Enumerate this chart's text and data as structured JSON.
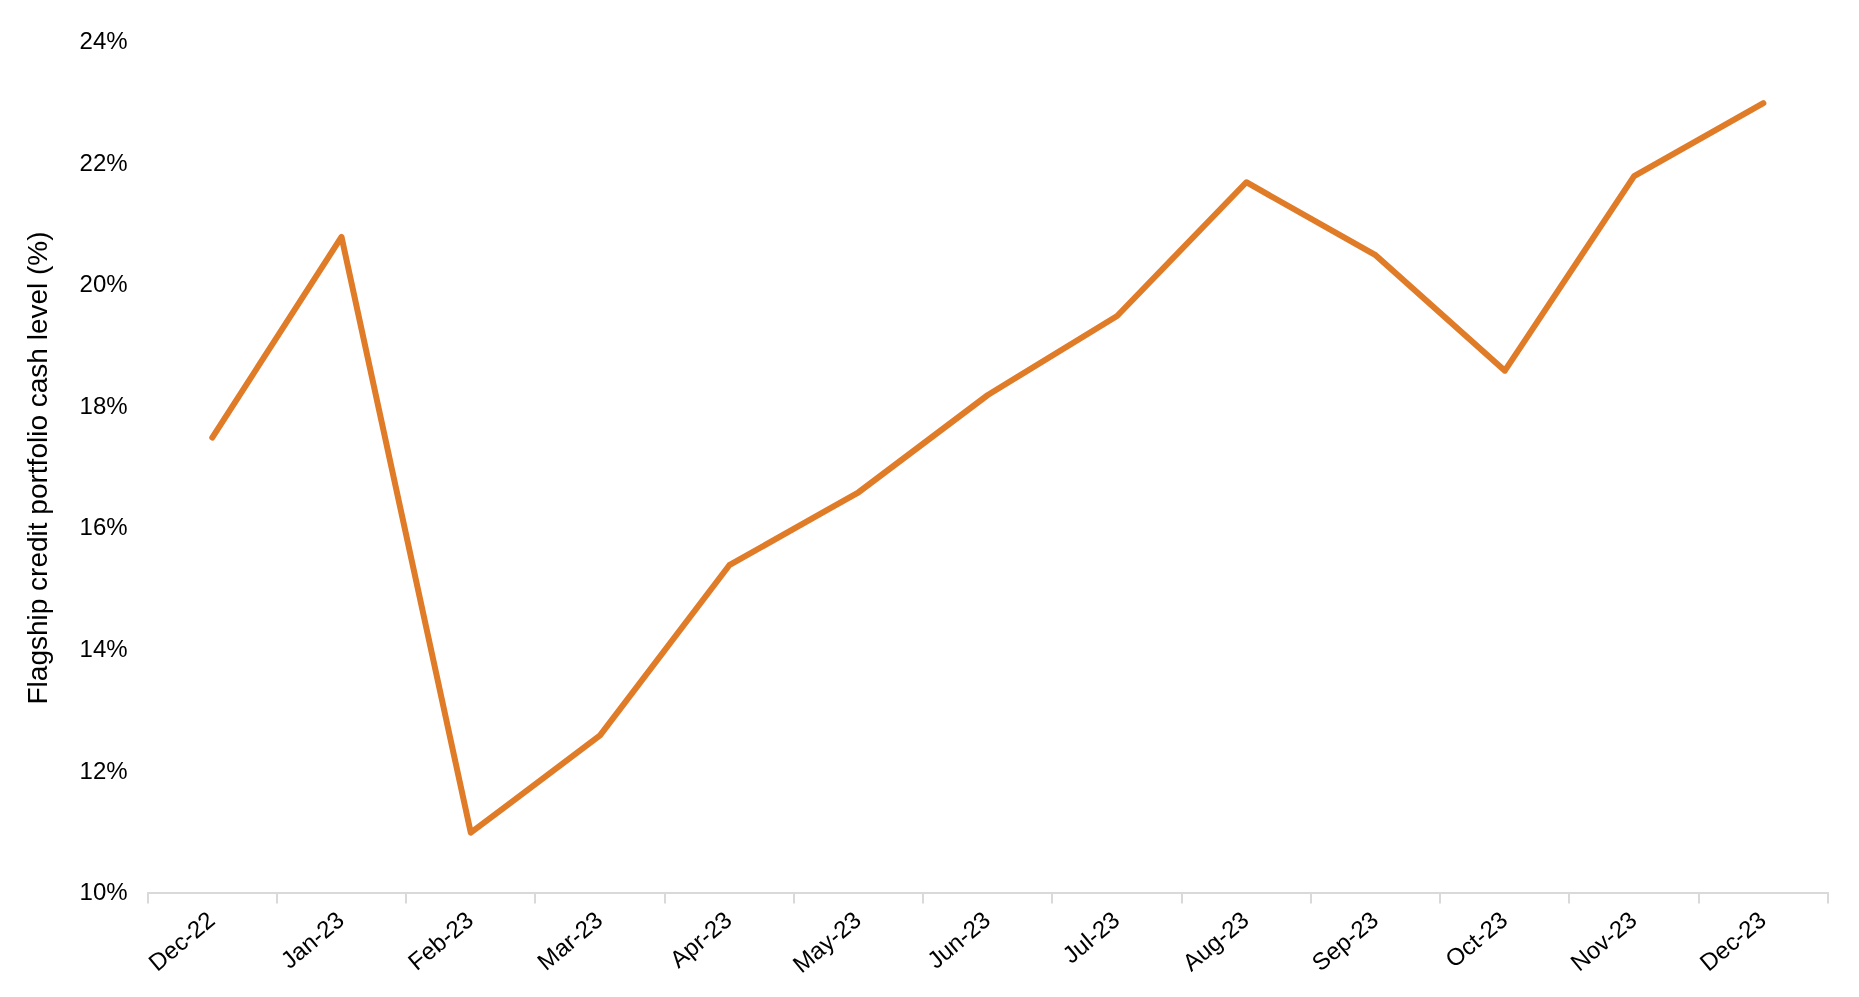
{
  "chart_data": {
    "type": "line",
    "ylabel": "Flagship credit portfolio cash level (%)",
    "categories": [
      "Dec-22",
      "Jan-23",
      "Feb-23",
      "Mar-23",
      "Apr-23",
      "May-23",
      "Jun-23",
      "Jul-23",
      "Aug-23",
      "Sep-23",
      "Oct-23",
      "Nov-23",
      "Dec-23"
    ],
    "series": [
      {
        "color": "#e07b28",
        "values": [
          17.5,
          20.8,
          11.0,
          12.6,
          15.4,
          16.6,
          18.2,
          19.5,
          21.7,
          20.5,
          18.6,
          21.8,
          23.0
        ]
      }
    ],
    "ylim": [
      10,
      24
    ],
    "yticks": [
      {
        "value": 10,
        "label": "10%"
      },
      {
        "value": 12,
        "label": "12%"
      },
      {
        "value": 14,
        "label": "14%"
      },
      {
        "value": 16,
        "label": "16%"
      },
      {
        "value": 18,
        "label": "18%"
      },
      {
        "value": 20,
        "label": "20%"
      },
      {
        "value": 22,
        "label": "22%"
      },
      {
        "value": 24,
        "label": "24%"
      }
    ],
    "grid": false,
    "legend": false,
    "marker": "none",
    "line_style": "solid"
  }
}
